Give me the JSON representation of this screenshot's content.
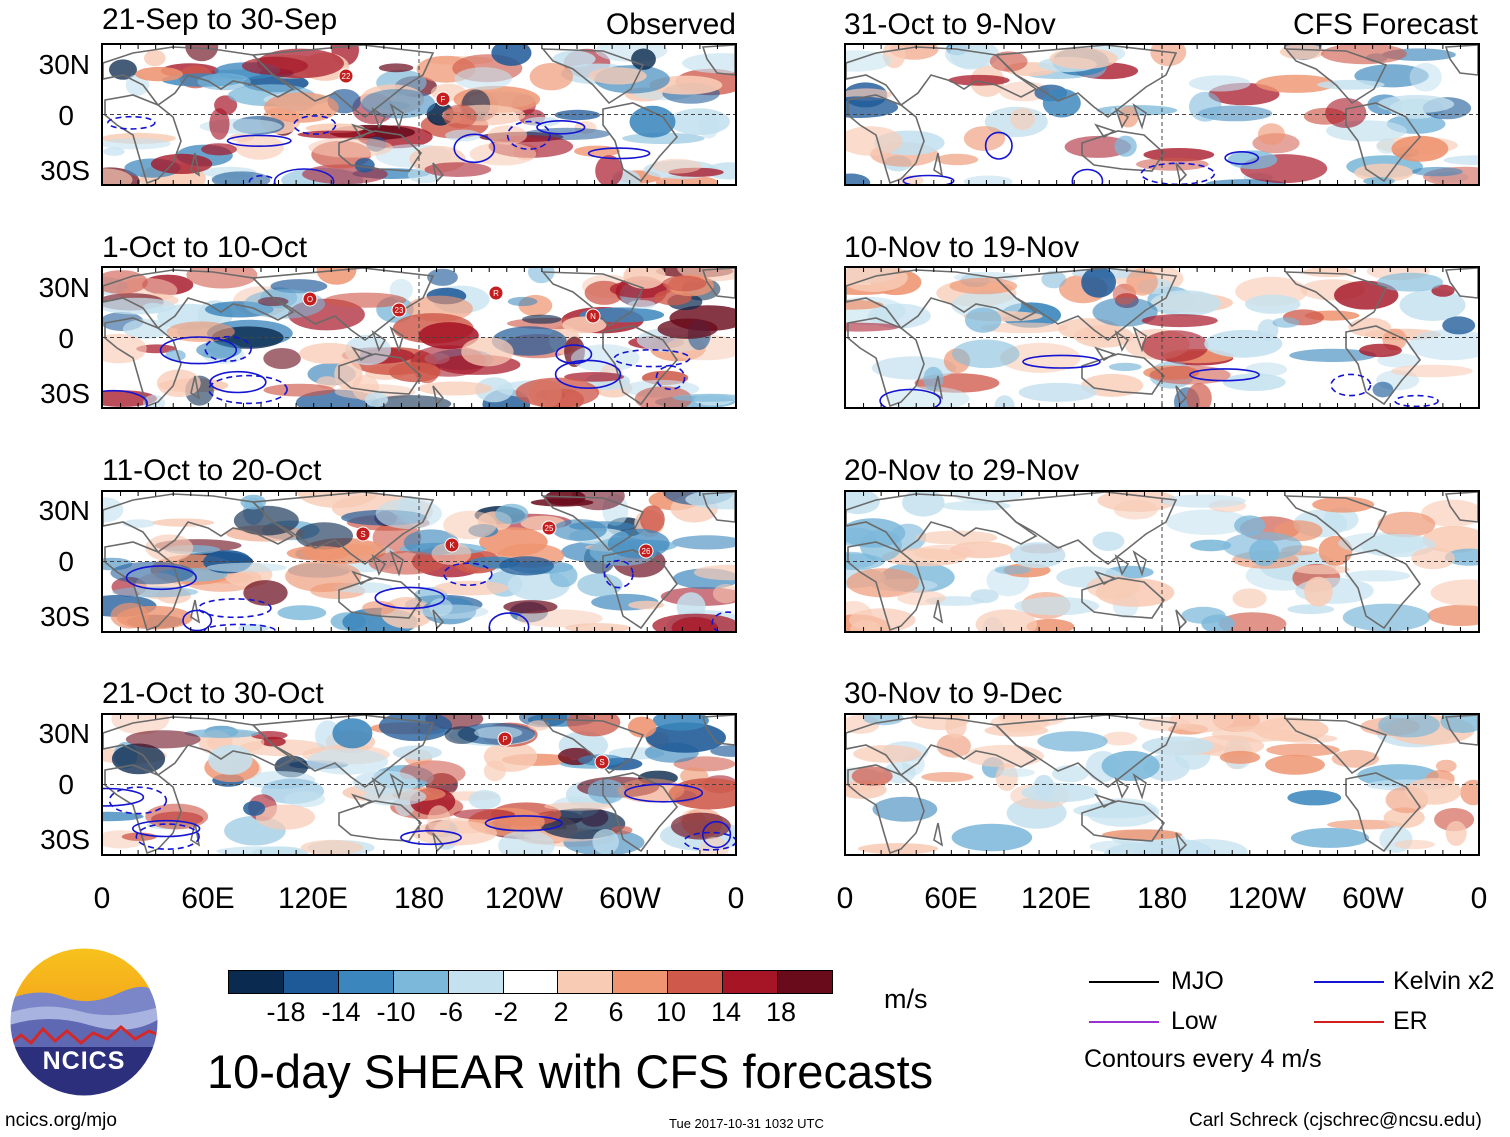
{
  "header": {
    "observed_label": "Observed",
    "forecast_label": "CFS Forecast"
  },
  "observed_panels": [
    {
      "title": "21-Sep to 30-Sep",
      "storms": [
        "22",
        "F"
      ]
    },
    {
      "title": "1-Oct to 10-Oct",
      "storms": [
        "23",
        "R",
        "N",
        "O"
      ]
    },
    {
      "title": "11-Oct to 20-Oct",
      "storms": [
        "K",
        "25",
        "26",
        "S"
      ]
    },
    {
      "title": "21-Oct to 30-Oct",
      "storms": [
        "P",
        "S"
      ]
    }
  ],
  "forecast_panels": [
    {
      "title": "31-Oct to 9-Nov"
    },
    {
      "title": "10-Nov to 19-Nov"
    },
    {
      "title": "20-Nov to 29-Nov"
    },
    {
      "title": "30-Nov to 9-Dec"
    }
  ],
  "lat_labels": [
    "30N",
    "0",
    "30S"
  ],
  "lon_labels": [
    "0",
    "60E",
    "120E",
    "180",
    "120W",
    "60W",
    "0"
  ],
  "colorbar": {
    "ticks": [
      "-18",
      "-14",
      "-10",
      "-6",
      "-2",
      "2",
      "6",
      "10",
      "14",
      "18"
    ],
    "colors": [
      "#0b2a4f",
      "#1e5a98",
      "#3b86bc",
      "#7cb8da",
      "#c4e1ef",
      "#ffffff",
      "#f8cbb5",
      "#ee9470",
      "#cf5a4b",
      "#a61526",
      "#6a0b1c"
    ],
    "unit": "m/s"
  },
  "legend": {
    "mjo": {
      "label": "MJO",
      "color": "#000000"
    },
    "low": {
      "label": "Low",
      "color": "#9b30d0"
    },
    "kelvin": {
      "label": "Kelvin x2",
      "color": "#1414d2"
    },
    "er": {
      "label": "ER",
      "color": "#d41e1e"
    },
    "contour_note": "Contours every 4 m/s"
  },
  "main_title": "10-day SHEAR with CFS forecasts",
  "logo_text": "NCICS",
  "footer": {
    "url": "ncics.org/mjo",
    "timestamp": "Tue 2017-10-31 1032 UTC",
    "author": "Carl Schreck (cjschrec@ncsu.edu)"
  }
}
